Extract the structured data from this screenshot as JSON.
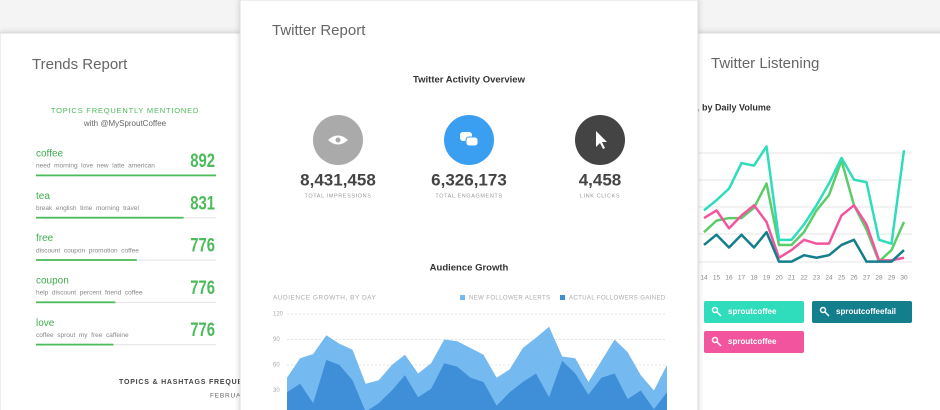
{
  "trends": {
    "title": "Trends Report",
    "heading": "TOPICS FREQUENTLY MENTIONED",
    "subheading": "with @MySproutCoffee",
    "topics": [
      {
        "name": "coffee",
        "keywords": "need  morning  love  new  latte  american",
        "count": 892,
        "bar": 100
      },
      {
        "name": "tea",
        "keywords": "break  english  time  morning  travel",
        "count": 831,
        "bar": 82
      },
      {
        "name": "free",
        "keywords": "discount  coupon  promotion  coffee",
        "count": 776,
        "bar": 56
      },
      {
        "name": "coupon",
        "keywords": "help  discount  percent  friend  coffee",
        "count": 776,
        "bar": 44
      },
      {
        "name": "love",
        "keywords": "coffee  sprout  my  free  caffeine",
        "count": 776,
        "bar": 43
      }
    ],
    "footer": "TOPICS & HASHTAGS FREQUEN",
    "footer_date": "FEBRUA"
  },
  "report": {
    "title": "Twitter Report",
    "overview_title": "Twitter Activity Overview",
    "stats": [
      {
        "value": "8,431,458",
        "label": "TOTAL IMPRESSIONS"
      },
      {
        "value": "6,326,173",
        "label": "TOTAL ENGAGMENTS"
      },
      {
        "value": "4,458",
        "label": "LINK CLICKS"
      }
    ],
    "growth_title": "Audience Growth"
  },
  "chart_data": [
    {
      "type": "area",
      "title": "AUDIENCE GROWTH, BY DAY",
      "ylim": [
        0,
        120
      ],
      "yticks": [
        30,
        60,
        90,
        120
      ],
      "grid": true,
      "legend": "top-right",
      "series": [
        {
          "name": "NEW FOLLOWER ALERTS",
          "color": "#74b9f0",
          "values": [
            45,
            68,
            73,
            95,
            85,
            78,
            38,
            42,
            60,
            72,
            50,
            62,
            90,
            88,
            80,
            72,
            45,
            55,
            80,
            92,
            105,
            70,
            68,
            40,
            65,
            90,
            75,
            48,
            30,
            60
          ]
        },
        {
          "name": "ACTUAL FOLLOWERS GAINED",
          "color": "#3f8ed8",
          "values": [
            28,
            38,
            15,
            66,
            60,
            42,
            5,
            15,
            30,
            48,
            22,
            32,
            62,
            58,
            45,
            40,
            12,
            28,
            40,
            50,
            22,
            65,
            50,
            25,
            45,
            50,
            20,
            30,
            8,
            28
          ]
        }
      ]
    },
    {
      "type": "line",
      "title": ", by Daily Volume",
      "panel_title": "Twitter Listening",
      "ylim": [
        0,
        100
      ],
      "categories": [
        "14",
        "15",
        "16",
        "17",
        "18",
        "19",
        "20",
        "21",
        "22",
        "23",
        "24",
        "25",
        "26",
        "27",
        "28",
        "29",
        "30"
      ],
      "series": [
        {
          "name": "sproutcoffee",
          "color": "#2fdcbc",
          "values": [
            45,
            53,
            62,
            82,
            80,
            95,
            22,
            22,
            34,
            49,
            66,
            86,
            69,
            67,
            22,
            19,
            92
          ]
        },
        {
          "name": "sproutcoffeefail",
          "color": "#137e8c",
          "values": [
            18,
            26,
            16,
            26,
            16,
            28,
            5,
            5,
            10,
            8,
            10,
            18,
            22,
            5,
            5,
            5,
            14
          ]
        },
        {
          "name": "sproutcoffee",
          "color": "#f2559d",
          "values": [
            39,
            45,
            31,
            41,
            49,
            36,
            8,
            14,
            22,
            19,
            19,
            41,
            49,
            34,
            6,
            6,
            8
          ]
        },
        {
          "color": "#5ccc6a",
          "values": [
            28,
            37,
            39,
            39,
            47,
            66,
            18,
            18,
            28,
            45,
            57,
            84,
            49,
            30,
            5,
            14,
            36
          ]
        }
      ]
    }
  ]
}
